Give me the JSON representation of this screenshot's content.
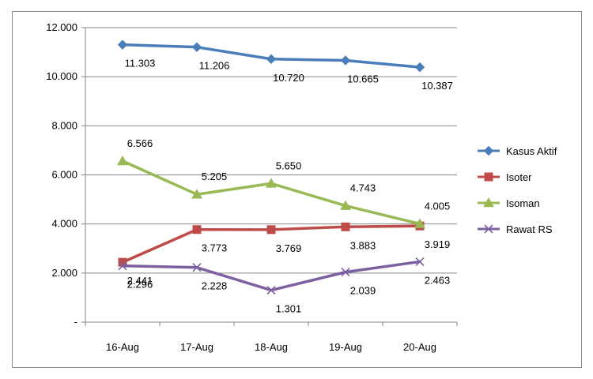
{
  "chart_data": {
    "type": "line",
    "title": "",
    "xlabel": "",
    "ylabel": "",
    "categories": [
      "16-Aug",
      "17-Aug",
      "18-Aug",
      "19-Aug",
      "20-Aug"
    ],
    "ylim": [
      0,
      12000
    ],
    "yticks": [
      0,
      2000,
      4000,
      6000,
      8000,
      10000,
      12000
    ],
    "ytick_labels": [
      "-",
      "2.000",
      "4.000",
      "6.000",
      "8.000",
      "10.000",
      "12.000"
    ],
    "grid": "horizontal",
    "legend_position": "right",
    "series": [
      {
        "name": "Kasus Aktif",
        "color": "#4A7EBB",
        "marker": "diamond",
        "values": [
          11303,
          11206,
          10720,
          10665,
          10387
        ],
        "labels": [
          "11.303",
          "11.206",
          "10.720",
          "10.665",
          "10.387"
        ],
        "label_position": "below"
      },
      {
        "name": "Isoter",
        "color": "#BE4B48",
        "marker": "square",
        "values": [
          2441,
          3773,
          3769,
          3883,
          3919
        ],
        "labels": [
          "2.441",
          "3.773",
          "3.769",
          "3.883",
          "3.919"
        ],
        "label_position": "below"
      },
      {
        "name": "Isoman",
        "color": "#98B954",
        "marker": "triangle",
        "values": [
          6566,
          5205,
          5650,
          4743,
          4005
        ],
        "labels": [
          "6.566",
          "5.205",
          "5.650",
          "4.743",
          "4.005"
        ],
        "label_position": "above"
      },
      {
        "name": "Rawat RS",
        "color": "#7D60A0",
        "marker": "x",
        "values": [
          2296,
          2228,
          1301,
          2039,
          2463
        ],
        "labels": [
          "2.296",
          "2.228",
          "1.301",
          "2.039",
          "2.463"
        ],
        "label_position": "below"
      }
    ]
  }
}
